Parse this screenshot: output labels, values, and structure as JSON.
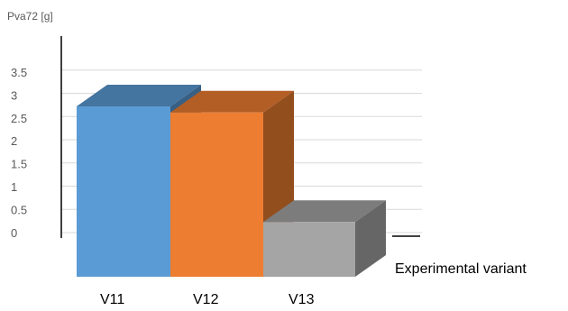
{
  "chart_data": {
    "type": "bar",
    "style": "3d-column",
    "ylabel": "Pva72 [g]",
    "xlabel": "Experimental variant",
    "categories": [
      "V11",
      "V12",
      "V13"
    ],
    "values": [
      2.8,
      2.7,
      0.9
    ],
    "ylim": [
      0,
      3.5
    ],
    "yticks": [
      "0",
      "0.5",
      "1",
      "1.5",
      "2",
      "2.5",
      "3",
      "3.5"
    ],
    "grid": true,
    "colors": [
      "#5b9bd5",
      "#ed7d31",
      "#a5a5a5"
    ]
  }
}
